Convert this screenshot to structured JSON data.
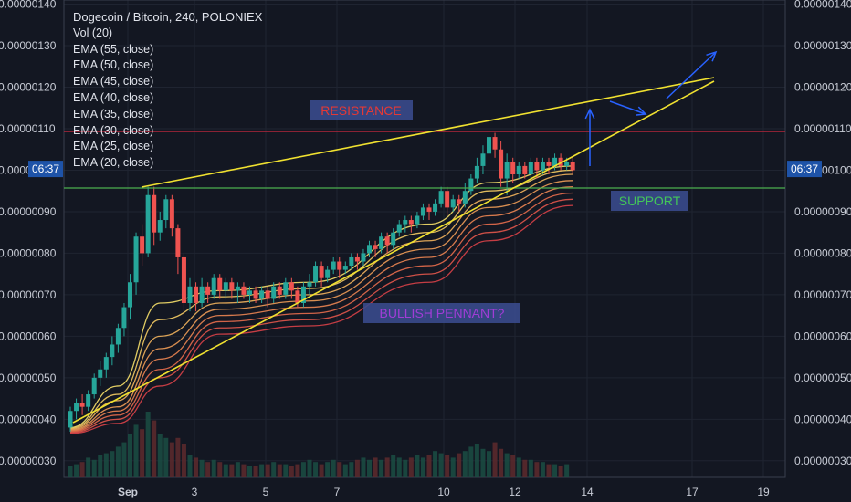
{
  "chart_data": {
    "type": "candlestick",
    "title": "Dogecoin / Bitcoin, 240, POLONIEX",
    "indicators": [
      "Vol (20)",
      "EMA (55, close)",
      "EMA (50, close)",
      "EMA (45, close)",
      "EMA (40, close)",
      "EMA (35, close)",
      "EMA (30, close)",
      "EMA (25, close)",
      "EMA (20, close)"
    ],
    "price_labels": [
      "0.00000140",
      "0.00000130",
      "0.00000120",
      "0.00000110",
      "0.00000100",
      "0.00000090",
      "0.00000080",
      "0.00000070",
      "0.00000060",
      "0.00000050",
      "0.00000040",
      "0.00000030"
    ],
    "left_price_labels": [
      "0.00000140",
      "0.00000130",
      "0.00000120",
      "0.00000110",
      "0.0000010",
      "0.00000090",
      "0.00000080",
      "0.00000070",
      "0.00000060",
      "0.00000050",
      "0.00000040",
      "0.00000030"
    ],
    "ylim": [
      2.6e-07,
      1.41e-06
    ],
    "x_labels": [
      "Sep",
      "3",
      "5",
      "7",
      "10",
      "12",
      "14",
      "17",
      "19"
    ],
    "time_badge": "06:37",
    "candles": [
      [
        3.8e-07,
        4.2e-07,
        3.7e-07,
        4.3e-07
      ],
      [
        4.2e-07,
        4.4e-07,
        4e-07,
        4.5e-07
      ],
      [
        4.4e-07,
        4.3e-07,
        4.1e-07,
        4.6e-07
      ],
      [
        4.3e-07,
        4.6e-07,
        4.2e-07,
        4.7e-07
      ],
      [
        4.6e-07,
        5e-07,
        4.5e-07,
        5.1e-07
      ],
      [
        5e-07,
        5.2e-07,
        4.8e-07,
        5.4e-07
      ],
      [
        5.2e-07,
        5.5e-07,
        5e-07,
        5.6e-07
      ],
      [
        5.5e-07,
        5.8e-07,
        5.3e-07,
        6e-07
      ],
      [
        5.8e-07,
        6.2e-07,
        5.6e-07,
        6.3e-07
      ],
      [
        6.2e-07,
        6.7e-07,
        6e-07,
        6.8e-07
      ],
      [
        6.7e-07,
        7.3e-07,
        6.4e-07,
        7.5e-07
      ],
      [
        7.3e-07,
        8.4e-07,
        7e-07,
        8.5e-07
      ],
      [
        8.4e-07,
        8e-07,
        7.7e-07,
        8.7e-07
      ],
      [
        8e-07,
        9.4e-07,
        7.9e-07,
        9.6e-07
      ],
      [
        9.4e-07,
        8.5e-07,
        8.2e-07,
        9.6e-07
      ],
      [
        8.5e-07,
        8.8e-07,
        8.3e-07,
        9e-07
      ],
      [
        8.8e-07,
        9.3e-07,
        8.6e-07,
        9.4e-07
      ],
      [
        9.3e-07,
        8.6e-07,
        8.4e-07,
        9.4e-07
      ],
      [
        8.6e-07,
        7.9e-07,
        7.5e-07,
        8.7e-07
      ],
      [
        7.9e-07,
        6.8e-07,
        6.5e-07,
        8e-07
      ],
      [
        6.8e-07,
        7.2e-07,
        6.6e-07,
        7.4e-07
      ],
      [
        7.2e-07,
        6.8e-07,
        6.6e-07,
        7.3e-07
      ],
      [
        6.8e-07,
        7.2e-07,
        6.7e-07,
        7.4e-07
      ],
      [
        7.2e-07,
        7e-07,
        6.8e-07,
        7.3e-07
      ],
      [
        7e-07,
        7.4e-07,
        6.9e-07,
        7.5e-07
      ],
      [
        7.4e-07,
        7.1e-07,
        6.9e-07,
        7.5e-07
      ],
      [
        7.1e-07,
        7.3e-07,
        6.9e-07,
        7.4e-07
      ],
      [
        7.3e-07,
        7.1e-07,
        6.9e-07,
        7.4e-07
      ],
      [
        7.1e-07,
        7.2e-07,
        6.8e-07,
        7.3e-07
      ],
      [
        7.2e-07,
        7e-07,
        6.9e-07,
        7.3e-07
      ],
      [
        7e-07,
        7.1e-07,
        6.8e-07,
        7.2e-07
      ],
      [
        7.1e-07,
        6.9e-07,
        6.8e-07,
        7.2e-07
      ],
      [
        6.9e-07,
        7.1e-07,
        6.8e-07,
        7.2e-07
      ],
      [
        7.1e-07,
        6.9e-07,
        6.7e-07,
        7.2e-07
      ],
      [
        6.9e-07,
        7.2e-07,
        6.8e-07,
        7.3e-07
      ],
      [
        7.2e-07,
        7e-07,
        6.9e-07,
        7.3e-07
      ],
      [
        7e-07,
        7.3e-07,
        6.9e-07,
        7.4e-07
      ],
      [
        7.3e-07,
        7.1e-07,
        6.9e-07,
        7.4e-07
      ],
      [
        7.1e-07,
        6.8e-07,
        6.7e-07,
        7.2e-07
      ],
      [
        6.8e-07,
        7.2e-07,
        6.7e-07,
        7.3e-07
      ],
      [
        7.2e-07,
        7.3e-07,
        7e-07,
        7.5e-07
      ],
      [
        7.3e-07,
        7.7e-07,
        7.2e-07,
        7.8e-07
      ],
      [
        7.7e-07,
        7.4e-07,
        7.2e-07,
        7.8e-07
      ],
      [
        7.4e-07,
        7.6e-07,
        7.3e-07,
        7.7e-07
      ],
      [
        7.6e-07,
        7.8e-07,
        7.5e-07,
        7.9e-07
      ],
      [
        7.8e-07,
        7.6e-07,
        7.4e-07,
        7.9e-07
      ],
      [
        7.6e-07,
        7.7e-07,
        7.5e-07,
        7.8e-07
      ],
      [
        7.7e-07,
        7.9e-07,
        7.6e-07,
        8e-07
      ],
      [
        7.9e-07,
        7.8e-07,
        7.6e-07,
        8e-07
      ],
      [
        7.8e-07,
        8e-07,
        7.7e-07,
        8.1e-07
      ],
      [
        8e-07,
        8.2e-07,
        7.9e-07,
        8.3e-07
      ],
      [
        8.2e-07,
        8.1e-07,
        7.9e-07,
        8.3e-07
      ],
      [
        8.1e-07,
        8.4e-07,
        8e-07,
        8.5e-07
      ],
      [
        8.4e-07,
        8.2e-07,
        8e-07,
        8.5e-07
      ],
      [
        8.2e-07,
        8.5e-07,
        8.1e-07,
        8.6e-07
      ],
      [
        8.5e-07,
        8.7e-07,
        8.4e-07,
        8.8e-07
      ],
      [
        8.7e-07,
        8.8e-07,
        8.5e-07,
        8.9e-07
      ],
      [
        8.8e-07,
        8.7e-07,
        8.5e-07,
        8.9e-07
      ],
      [
        8.7e-07,
        8.9e-07,
        8.6e-07,
        9e-07
      ],
      [
        8.9e-07,
        9.1e-07,
        8.8e-07,
        9.2e-07
      ],
      [
        9.1e-07,
        9e-07,
        8.8e-07,
        9.2e-07
      ],
      [
        9e-07,
        9.2e-07,
        8.9e-07,
        9.3e-07
      ],
      [
        9.2e-07,
        9.5e-07,
        9.1e-07,
        9.6e-07
      ],
      [
        9.5e-07,
        9.1e-07,
        8.9e-07,
        9.6e-07
      ],
      [
        9.1e-07,
        9.3e-07,
        9e-07,
        9.4e-07
      ],
      [
        9.3e-07,
        9.2e-07,
        9e-07,
        9.4e-07
      ],
      [
        9.2e-07,
        9.5e-07,
        9.1e-07,
        9.7e-07
      ],
      [
        9.5e-07,
        9.8e-07,
        9.4e-07,
        9.9e-07
      ],
      [
        9.8e-07,
        1.01e-06,
        9.7e-07,
        1.03e-06
      ],
      [
        1.01e-06,
        1.04e-06,
        9.9e-07,
        1.06e-06
      ],
      [
        1.04e-06,
        1.08e-06,
        1.02e-06,
        1.1e-06
      ],
      [
        1.08e-06,
        1.05e-06,
        1.03e-06,
        1.09e-06
      ],
      [
        1.05e-06,
        9.8e-07,
        9.6e-07,
        1.07e-06
      ],
      [
        9.8e-07,
        1.02e-06,
        9.4e-07,
        1.04e-06
      ],
      [
        1.02e-06,
        9.9e-07,
        9.7e-07,
        1.03e-06
      ],
      [
        9.9e-07,
        1.01e-06,
        9.8e-07,
        1.02e-06
      ],
      [
        1.01e-06,
        9.9e-07,
        9.8e-07,
        1.02e-06
      ],
      [
        9.9e-07,
        1.02e-06,
        9.8e-07,
        1.03e-06
      ],
      [
        1.02e-06,
        1e-06,
        9.8e-07,
        1.03e-06
      ],
      [
        1e-06,
        1.02e-06,
        9.9e-07,
        1.03e-06
      ],
      [
        1.02e-06,
        1.01e-06,
        9.9e-07,
        1.03e-06
      ],
      [
        1.01e-06,
        1.03e-06,
        1e-06,
        1.04e-06
      ],
      [
        1.03e-06,
        1.01e-06,
        1e-06,
        1.04e-06
      ],
      [
        1.01e-06,
        1.02e-06,
        1e-06,
        1.03e-06
      ],
      [
        1.02e-06,
        1e-06,
        9.9e-07,
        1.03e-06
      ]
    ],
    "volumes": [
      5,
      6,
      7,
      9,
      8,
      10,
      11,
      12,
      14,
      16,
      20,
      24,
      22,
      30,
      26,
      20,
      18,
      16,
      18,
      15,
      10,
      9,
      8,
      7,
      8,
      7,
      6,
      6,
      7,
      6,
      5,
      5,
      6,
      6,
      7,
      6,
      6,
      5,
      6,
      7,
      8,
      7,
      6,
      7,
      8,
      7,
      6,
      7,
      8,
      9,
      8,
      9,
      8,
      9,
      10,
      9,
      8,
      9,
      10,
      9,
      10,
      12,
      11,
      10,
      9,
      11,
      12,
      14,
      15,
      13,
      12,
      16,
      13,
      11,
      10,
      9,
      8,
      8,
      7,
      7,
      6,
      6,
      5,
      6
    ],
    "ema_series": [
      {
        "label": "EMA (20)",
        "color": "#f7e06a",
        "points": [
          [
            0,
            3.8e-07
          ],
          [
            8,
            4.8e-07
          ],
          [
            15,
            6.8e-07
          ],
          [
            25,
            7.1e-07
          ],
          [
            40,
            7.3e-07
          ],
          [
            60,
            8.7e-07
          ],
          [
            70,
            9.7e-07
          ],
          [
            84,
            1.01e-06
          ]
        ]
      },
      {
        "label": "EMA (25)",
        "color": "#f5cc64",
        "points": [
          [
            0,
            3.78e-07
          ],
          [
            8,
            4.6e-07
          ],
          [
            15,
            6.4e-07
          ],
          [
            25,
            6.95e-07
          ],
          [
            40,
            7.15e-07
          ],
          [
            60,
            8.5e-07
          ],
          [
            70,
            9.5e-07
          ],
          [
            84,
            1e-06
          ]
        ]
      },
      {
        "label": "EMA (30)",
        "color": "#f3b45d",
        "points": [
          [
            0,
            3.76e-07
          ],
          [
            8,
            4.45e-07
          ],
          [
            15,
            6e-07
          ],
          [
            25,
            6.8e-07
          ],
          [
            40,
            7e-07
          ],
          [
            60,
            8.3e-07
          ],
          [
            70,
            9.3e-07
          ],
          [
            84,
            9.9e-07
          ]
        ]
      },
      {
        "label": "EMA (35)",
        "color": "#ef9c56",
        "points": [
          [
            0,
            3.74e-07
          ],
          [
            8,
            4.3e-07
          ],
          [
            15,
            5.7e-07
          ],
          [
            25,
            6.65e-07
          ],
          [
            40,
            6.85e-07
          ],
          [
            60,
            8.1e-07
          ],
          [
            70,
            9.1e-07
          ],
          [
            84,
            9.75e-07
          ]
        ]
      },
      {
        "label": "EMA (40)",
        "color": "#ec8552",
        "points": [
          [
            0,
            3.72e-07
          ],
          [
            8,
            4.2e-07
          ],
          [
            15,
            5.45e-07
          ],
          [
            25,
            6.5e-07
          ],
          [
            40,
            6.7e-07
          ],
          [
            60,
            7.9e-07
          ],
          [
            70,
            8.9e-07
          ],
          [
            84,
            9.6e-07
          ]
        ]
      },
      {
        "label": "EMA (45)",
        "color": "#e86d4d",
        "points": [
          [
            0,
            3.7e-07
          ],
          [
            8,
            4.1e-07
          ],
          [
            15,
            5.2e-07
          ],
          [
            25,
            6.35e-07
          ],
          [
            40,
            6.55e-07
          ],
          [
            60,
            7.7e-07
          ],
          [
            70,
            8.7e-07
          ],
          [
            84,
            9.45e-07
          ]
        ]
      },
      {
        "label": "EMA (50)",
        "color": "#e3564b",
        "points": [
          [
            0,
            3.68e-07
          ],
          [
            8,
            4e-07
          ],
          [
            15,
            5e-07
          ],
          [
            25,
            6.2e-07
          ],
          [
            40,
            6.4e-07
          ],
          [
            60,
            7.5e-07
          ],
          [
            70,
            8.5e-07
          ],
          [
            84,
            9.3e-07
          ]
        ]
      },
      {
        "label": "EMA (55)",
        "color": "#d94148",
        "points": [
          [
            0,
            3.66e-07
          ],
          [
            8,
            3.9e-07
          ],
          [
            15,
            4.8e-07
          ],
          [
            25,
            6.05e-07
          ],
          [
            40,
            6.25e-07
          ],
          [
            60,
            7.3e-07
          ],
          [
            70,
            8.3e-07
          ],
          [
            84,
            9.15e-07
          ]
        ]
      }
    ],
    "annotations": {
      "resistance": {
        "text": "RESISTANCE",
        "value": 1.093e-06
      },
      "support": {
        "text": "SUPPORT",
        "value": 9.57e-07
      },
      "pennant": {
        "text": "BULLISH PENNANT?"
      }
    },
    "colors": {
      "up": "#26a69a",
      "down": "#ef5350",
      "background": "#131722",
      "resistance": "#b2263a",
      "support": "#4caf50",
      "trend": "#f0e130",
      "arrow": "#2962ff",
      "badge": "#1e53a8"
    },
    "grid": true
  }
}
